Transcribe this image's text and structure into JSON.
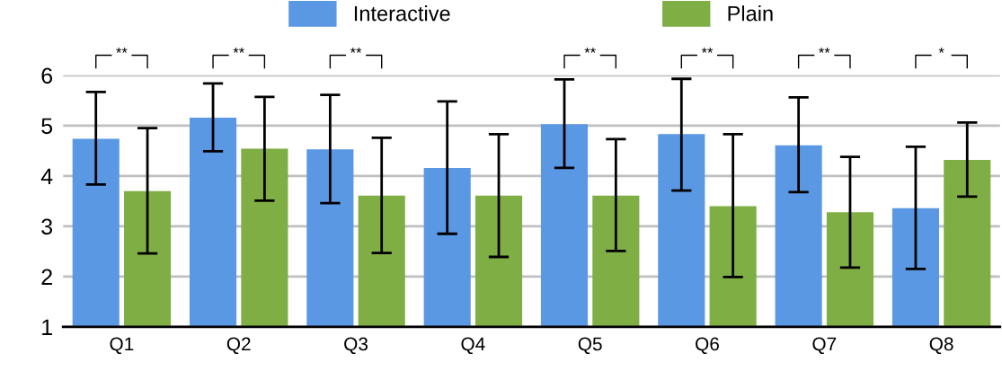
{
  "chart_data": {
    "type": "bar",
    "categories": [
      "Q1",
      "Q2",
      "Q3",
      "Q4",
      "Q5",
      "Q6",
      "Q7",
      "Q8"
    ],
    "series": [
      {
        "name": "Interactive",
        "color": "#5a98e4",
        "values": [
          4.74,
          5.16,
          4.53,
          4.16,
          5.03,
          4.83,
          4.61,
          3.36
        ],
        "errors": [
          [
            3.83,
            5.67
          ],
          [
            4.49,
            5.84
          ],
          [
            3.46,
            5.61
          ],
          [
            2.85,
            5.48
          ],
          [
            4.16,
            5.92
          ],
          [
            3.71,
            5.93
          ],
          [
            3.68,
            5.56
          ],
          [
            2.15,
            4.58
          ]
        ]
      },
      {
        "name": "Plain",
        "color": "#7fae45",
        "values": [
          3.7,
          4.54,
          3.61,
          3.61,
          3.61,
          3.4,
          3.28,
          4.32
        ],
        "errors": [
          [
            2.46,
            4.95
          ],
          [
            3.51,
            5.57
          ],
          [
            2.47,
            4.76
          ],
          [
            2.39,
            4.83
          ],
          [
            2.51,
            4.73
          ],
          [
            1.99,
            4.83
          ],
          [
            2.18,
            4.38
          ],
          [
            3.59,
            5.06
          ]
        ]
      }
    ],
    "ylim": [
      1,
      6
    ],
    "yticks": [
      1,
      2,
      3,
      4,
      5,
      6
    ],
    "grid": "y",
    "legend": "top",
    "annotations": [
      "**",
      "**",
      "**",
      null,
      "**",
      "**",
      "**",
      "*"
    ]
  }
}
